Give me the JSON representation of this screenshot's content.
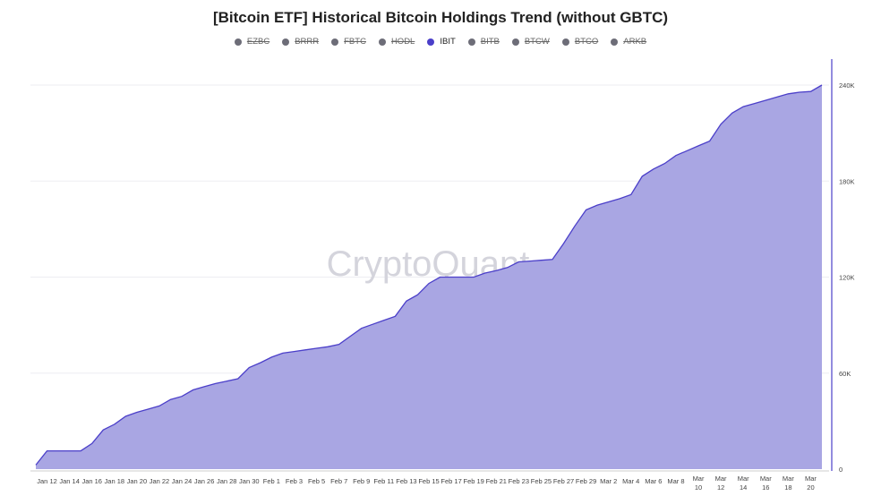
{
  "chart_data": {
    "type": "area",
    "title": "[Bitcoin ETF] Historical Bitcoin Holdings Trend (without GBTC)",
    "legend": [
      {
        "name": "EZBC",
        "visible": false
      },
      {
        "name": "BRRR",
        "visible": false
      },
      {
        "name": "FBTC",
        "visible": false
      },
      {
        "name": "HODL",
        "visible": false
      },
      {
        "name": "IBIT",
        "visible": true
      },
      {
        "name": "BITB",
        "visible": false
      },
      {
        "name": "BTCW",
        "visible": false
      },
      {
        "name": "BTCO",
        "visible": false
      },
      {
        "name": "ARKB",
        "visible": false
      }
    ],
    "x_ticks": [
      "Jan 12",
      "Jan 14",
      "Jan 16",
      "Jan 18",
      "Jan 20",
      "Jan 22",
      "Jan 24",
      "Jan 26",
      "Jan 28",
      "Jan 30",
      "Feb 1",
      "Feb 3",
      "Feb 5",
      "Feb 7",
      "Feb 9",
      "Feb 11",
      "Feb 13",
      "Feb 15",
      "Feb 17",
      "Feb 19",
      "Feb 21",
      "Feb 23",
      "Feb 25",
      "Feb 27",
      "Feb 29",
      "Mar 2",
      "Mar 4",
      "Mar 6",
      "Mar 8",
      "Mar 10",
      "Mar 12",
      "Mar 14",
      "Mar 16",
      "Mar 18",
      "Mar 20"
    ],
    "y_ticks": [
      "0",
      "60K",
      "120K",
      "180K",
      "240K"
    ],
    "y_axis_position": "right",
    "ylim": [
      0,
      240000
    ],
    "series": [
      {
        "name": "IBIT",
        "color": "#4b3fc9",
        "fill": "#a9a6e3",
        "points": [
          [
            "Jan 11",
            2600
          ],
          [
            "Jan 12",
            11400
          ],
          [
            "Jan 13",
            11400
          ],
          [
            "Jan 14",
            11400
          ],
          [
            "Jan 15",
            11400
          ],
          [
            "Jan 16",
            16000
          ],
          [
            "Jan 17",
            24500
          ],
          [
            "Jan 18",
            28000
          ],
          [
            "Jan 19",
            33000
          ],
          [
            "Jan 20",
            35500
          ],
          [
            "Jan 21",
            37500
          ],
          [
            "Jan 22",
            39500
          ],
          [
            "Jan 23",
            43500
          ],
          [
            "Jan 24",
            45500
          ],
          [
            "Jan 25",
            49500
          ],
          [
            "Jan 26",
            51500
          ],
          [
            "Jan 27",
            53500
          ],
          [
            "Jan 28",
            55000
          ],
          [
            "Jan 29",
            56500
          ],
          [
            "Jan 30",
            63500
          ],
          [
            "Jan 31",
            66500
          ],
          [
            "Feb 1",
            70000
          ],
          [
            "Feb 2",
            72500
          ],
          [
            "Feb 3",
            73500
          ],
          [
            "Feb 4",
            74500
          ],
          [
            "Feb 5",
            75500
          ],
          [
            "Feb 6",
            76500
          ],
          [
            "Feb 7",
            78000
          ],
          [
            "Feb 8",
            83000
          ],
          [
            "Feb 9",
            88000
          ],
          [
            "Feb 10",
            90500
          ],
          [
            "Feb 11",
            93000
          ],
          [
            "Feb 12",
            95500
          ],
          [
            "Feb 13",
            105000
          ],
          [
            "Feb 14",
            109000
          ],
          [
            "Feb 15",
            116000
          ],
          [
            "Feb 16",
            120000
          ],
          [
            "Feb 17",
            120000
          ],
          [
            "Feb 18",
            120000
          ],
          [
            "Feb 19",
            120000
          ],
          [
            "Feb 20",
            122500
          ],
          [
            "Feb 21",
            124000
          ],
          [
            "Feb 22",
            126000
          ],
          [
            "Feb 23",
            129500
          ],
          [
            "Feb 24",
            130000
          ],
          [
            "Feb 25",
            130500
          ],
          [
            "Feb 26",
            131000
          ],
          [
            "Feb 27",
            141000
          ],
          [
            "Feb 28",
            152000
          ],
          [
            "Feb 29",
            162000
          ],
          [
            "Mar 1",
            165000
          ],
          [
            "Mar 2",
            167000
          ],
          [
            "Mar 3",
            169000
          ],
          [
            "Mar 4",
            171500
          ],
          [
            "Mar 5",
            183000
          ],
          [
            "Mar 6",
            187500
          ],
          [
            "Mar 7",
            191000
          ],
          [
            "Mar 8",
            196000
          ],
          [
            "Mar 9",
            199000
          ],
          [
            "Mar 10",
            202000
          ],
          [
            "Mar 11",
            205000
          ],
          [
            "Mar 12",
            215500
          ],
          [
            "Mar 13",
            222500
          ],
          [
            "Mar 14",
            226500
          ],
          [
            "Mar 15",
            228500
          ],
          [
            "Mar 16",
            230500
          ],
          [
            "Mar 17",
            232500
          ],
          [
            "Mar 18",
            234500
          ],
          [
            "Mar 19",
            235500
          ],
          [
            "Mar 20",
            236000
          ],
          [
            "Mar 21",
            240000
          ]
        ]
      }
    ]
  },
  "watermark": "CryptoQuant"
}
